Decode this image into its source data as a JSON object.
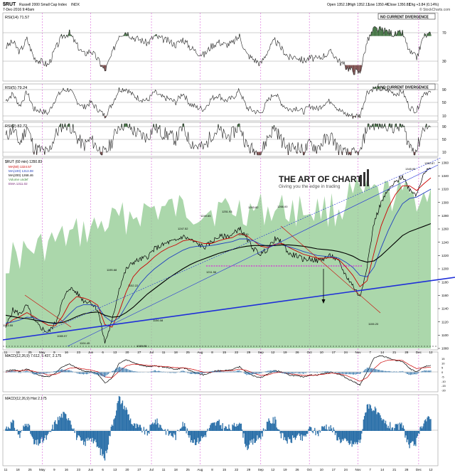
{
  "header": {
    "symbol": "$RUT",
    "name": "Russell 2000 Small Cap Index",
    "exchange": "INDX",
    "date": "7-Dec-2016 9:40am",
    "open": "Open 1352.10",
    "high": "High 1352.13",
    "low": "Low 1350.46",
    "close": "Close 1350.83",
    "change": "Chg +3.84 (0.14%)",
    "source": "© StockCharts.com"
  },
  "panels": {
    "rsi14": {
      "label": "RSI(14) 71.57",
      "note": "NO CURRENT DIVERGENCE",
      "levels": [
        "70",
        "30"
      ]
    },
    "rsi5": {
      "label": "RSI(5) 79.24",
      "note": "NO CURRENT DIVERGENCE",
      "levels": [
        "90",
        "50",
        "10"
      ]
    },
    "rsi2": {
      "label": "RSI(2) 82.72",
      "levels": [
        "90",
        "50",
        "10"
      ]
    },
    "price": {
      "legend": [
        "$RUT (60 min) 1350.83",
        "MA(50) 1324.57",
        "MA(100) 1313.08",
        "MA(200) 1268.46",
        "Volume undef",
        "EMA 1311.02"
      ],
      "price_labels": [
        "1350.87",
        "1345.95",
        "1263.82",
        "1251.93",
        "1249.65",
        "1247.52",
        "1266.00",
        "1238.30",
        "1211.56",
        "1195.68",
        "1152.22",
        "1133.55",
        "1104.45",
        "1089.95",
        "1089.97",
        "1156.08",
        "1106.20"
      ],
      "axis_ticks": [
        "1360",
        "1340",
        "1320",
        "1300",
        "1280",
        "1260",
        "1240",
        "1220",
        "1200",
        "1180",
        "1160",
        "1140",
        "1120",
        "1100",
        "1080"
      ]
    },
    "macd": {
      "label": "MACD(12,26,9) 7.612, 5.437, 2.175",
      "axis_ticks": [
        "15",
        "10",
        "5",
        "0",
        "-5",
        "-10",
        "-15",
        "-20"
      ]
    },
    "hist": {
      "label": "MACD(12,26,9) Hist 2.175"
    }
  },
  "watermark": {
    "brand": "THE ART OF CHART",
    "tagline": "Giving you the edge in trading"
  },
  "x_axis": [
    "11",
    "18",
    "25",
    "May",
    "9",
    "16",
    "23",
    "Jun",
    "6",
    "13",
    "20",
    "27",
    "Jul",
    "11",
    "18",
    "25",
    "Aug",
    "8",
    "15",
    "22",
    "29",
    "Sep",
    "12",
    "19",
    "26",
    "Oct",
    "10",
    "17",
    "24",
    "Nov",
    "7",
    "14",
    "21",
    "28",
    "Dec",
    "12"
  ],
  "colors": {
    "price": "#000000",
    "ma50": "#cc0000",
    "ma100": "#1f3fbf",
    "ma200": "#000000",
    "volume": "#8fca8f",
    "rsi_fill_up": "#3c6e3c",
    "rsi_fill_down": "#7a4a4a",
    "trendline": "#1f2fd8",
    "support": "#e000e0",
    "macd_hist": "#2a6fa8"
  },
  "chart_data": [
    {
      "type": "line",
      "panel": "price",
      "series": [
        {
          "name": "$RUT",
          "values": [
            1112,
            1138,
            1132,
            1145,
            1121,
            1111,
            1104,
            1118,
            1150,
            1172,
            1164,
            1152,
            1150,
            1138,
            1089,
            1120,
            1170,
            1199,
            1210,
            1214,
            1218,
            1230,
            1235,
            1240,
            1242,
            1249,
            1244,
            1238,
            1232,
            1240,
            1248,
            1249,
            1251,
            1262,
            1245,
            1230,
            1222,
            1230,
            1245,
            1240,
            1222,
            1220,
            1214,
            1215,
            1212,
            1216,
            1220,
            1210,
            1190,
            1175,
            1157,
            1205,
            1270,
            1300,
            1318,
            1330,
            1340,
            1320,
            1312,
            1346,
            1350
          ]
        },
        {
          "name": "MA(50)",
          "values": [
            1115,
            1123,
            1128,
            1134,
            1128,
            1121,
            1115,
            1114,
            1128,
            1148,
            1158,
            1156,
            1152,
            1145,
            1116,
            1112,
            1135,
            1165,
            1188,
            1200,
            1208,
            1218,
            1226,
            1232,
            1236,
            1242,
            1244,
            1241,
            1238,
            1238,
            1242,
            1245,
            1247,
            1253,
            1250,
            1242,
            1234,
            1232,
            1237,
            1238,
            1232,
            1227,
            1222,
            1219,
            1216,
            1216,
            1217,
            1214,
            1203,
            1190,
            1173,
            1182,
            1225,
            1265,
            1292,
            1312,
            1325,
            1325,
            1318,
            1328,
            1337
          ]
        },
        {
          "name": "MA(100)",
          "values": [
            1118,
            1120,
            1123,
            1127,
            1126,
            1122,
            1119,
            1117,
            1121,
            1132,
            1142,
            1146,
            1146,
            1143,
            1128,
            1120,
            1126,
            1144,
            1162,
            1178,
            1190,
            1200,
            1208,
            1216,
            1222,
            1228,
            1232,
            1234,
            1234,
            1235,
            1237,
            1239,
            1241,
            1245,
            1245,
            1242,
            1237,
            1234,
            1235,
            1236,
            1233,
            1230,
            1226,
            1223,
            1220,
            1219,
            1218,
            1216,
            1210,
            1202,
            1190,
            1188,
            1203,
            1232,
            1258,
            1280,
            1298,
            1306,
            1308,
            1314,
            1320
          ]
        },
        {
          "name": "MA(200)",
          "values": [
            1130,
            1128,
            1126,
            1125,
            1123,
            1121,
            1119,
            1118,
            1119,
            1123,
            1128,
            1132,
            1134,
            1135,
            1130,
            1127,
            1128,
            1134,
            1142,
            1152,
            1162,
            1170,
            1178,
            1186,
            1193,
            1200,
            1206,
            1211,
            1215,
            1219,
            1223,
            1226,
            1229,
            1232,
            1234,
            1235,
            1235,
            1235,
            1235,
            1236,
            1236,
            1235,
            1234,
            1232,
            1230,
            1229,
            1228,
            1226,
            1223,
            1219,
            1213,
            1210,
            1212,
            1220,
            1230,
            1240,
            1250,
            1256,
            1260,
            1264,
            1268
          ]
        }
      ],
      "ylim": [
        1080,
        1365
      ],
      "ylabel": ""
    },
    {
      "type": "line",
      "panel": "rsi14",
      "series": [
        {
          "name": "RSI(14)",
          "values": [
            55,
            62,
            48,
            66,
            40,
            35,
            30,
            52,
            70,
            74,
            58,
            45,
            50,
            38,
            22,
            45,
            72,
            76,
            68,
            65,
            60,
            70,
            66,
            63,
            58,
            66,
            55,
            48,
            44,
            56,
            62,
            58,
            60,
            70,
            45,
            38,
            32,
            50,
            64,
            52,
            40,
            42,
            36,
            40,
            38,
            44,
            48,
            36,
            28,
            22,
            20,
            62,
            80,
            78,
            76,
            72,
            74,
            48,
            40,
            70,
            72
          ]
        }
      ],
      "ylim": [
        10,
        100
      ]
    },
    {
      "type": "line",
      "panel": "rsi5",
      "series": [
        {
          "name": "RSI(5)",
          "values": [
            55,
            75,
            40,
            80,
            30,
            25,
            18,
            60,
            85,
            88,
            55,
            35,
            50,
            30,
            10,
            45,
            88,
            90,
            70,
            60,
            55,
            80,
            65,
            60,
            50,
            78,
            45,
            35,
            30,
            60,
            72,
            55,
            62,
            85,
            35,
            25,
            18,
            55,
            78,
            45,
            28,
            35,
            22,
            40,
            30,
            48,
            55,
            28,
            15,
            10,
            12,
            80,
            92,
            88,
            85,
            75,
            82,
            35,
            25,
            80,
            79
          ]
        }
      ],
      "ylim": [
        0,
        100
      ]
    },
    {
      "type": "bar",
      "panel": "macd_hist",
      "values": [
        0.5,
        1.5,
        -1,
        2,
        -2.5,
        -2,
        -1,
        1.5,
        3,
        2.5,
        -1,
        -2.5,
        -1,
        -3,
        -5,
        1,
        6,
        4,
        1,
        0.5,
        -0.5,
        2,
        0.8,
        -0.5,
        -1,
        1.8,
        -1.5,
        -2,
        -1,
        1,
        1.5,
        0.5,
        0.5,
        2,
        -3,
        -2,
        -1,
        1.5,
        2,
        -1,
        -2,
        -1,
        -1.5,
        0.5,
        -0.5,
        1,
        0.5,
        -1.5,
        -2,
        -2.5,
        -2,
        5,
        4,
        2,
        1,
        0.5,
        1,
        -3,
        -2,
        2,
        2.175
      ],
      "ylim": [
        -6,
        6
      ]
    },
    {
      "type": "line",
      "panel": "macd",
      "series": [
        {
          "name": "MACD",
          "values": [
            1,
            3,
            1,
            4,
            -1,
            -4,
            -5,
            -1,
            6,
            9,
            5,
            1,
            1,
            -2,
            -12,
            -6,
            10,
            14,
            11,
            8,
            6,
            7,
            6,
            5,
            3,
            5,
            2,
            -1,
            -3,
            0,
            2,
            2,
            3,
            6,
            0,
            -4,
            -6,
            -2,
            2,
            0,
            -3,
            -4,
            -5,
            -3,
            -3,
            -1,
            0,
            -2,
            -6,
            -10,
            -14,
            0,
            16,
            18,
            16,
            13,
            12,
            4,
            0,
            6,
            7.612
          ]
        },
        {
          "name": "Signal",
          "values": [
            0,
            1.5,
            1.5,
            2.5,
            1,
            -1,
            -3,
            -2.5,
            1,
            4.5,
            5,
            3.5,
            2.5,
            0.5,
            -5,
            -6,
            1,
            7,
            9,
            8.5,
            7.5,
            7,
            6.5,
            6,
            5,
            5,
            4,
            2,
            0,
            0,
            1,
            1.5,
            2,
            3.5,
            2,
            -1,
            -3.5,
            -3,
            -0.5,
            0,
            -1.5,
            -2.5,
            -3.5,
            -3.5,
            -3,
            -2,
            -1,
            -1.5,
            -3.5,
            -6.5,
            -10,
            -6,
            4,
            11,
            13.5,
            13.5,
            13,
            8,
            4,
            5,
            5.437
          ]
        }
      ],
      "ylim": [
        -20,
        20
      ]
    }
  ]
}
